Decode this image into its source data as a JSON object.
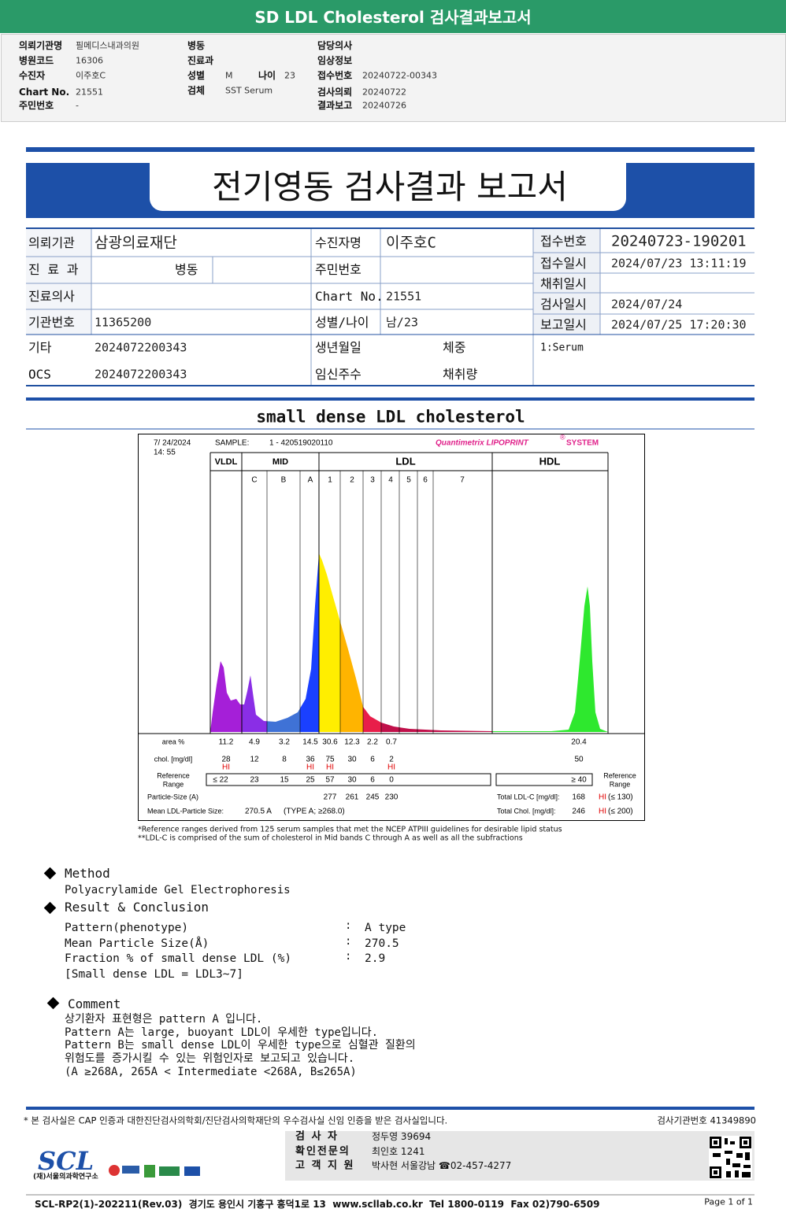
{
  "header": {
    "title": "SD LDL Cholesterol 검사결과보고서"
  },
  "info": [
    [
      [
        "의뢰기관명",
        "필메디스내과의원"
      ],
      [
        "병원코드",
        "16306"
      ],
      [
        "수진자",
        "이주호C"
      ],
      [
        "Chart No.",
        "21551"
      ],
      [
        "주민번호",
        "-"
      ]
    ],
    [
      [
        "병동"
      ],
      [
        "진료과"
      ],
      [
        "성별",
        "M",
        "나이",
        "23"
      ],
      [
        "검체",
        "SST Serum"
      ]
    ],
    [
      [
        "담당의사"
      ],
      [
        "임상정보"
      ],
      [
        "접수번호",
        "20240722-00343"
      ],
      [
        "검사의뢰",
        "20240722"
      ],
      [
        "결과보고",
        "20240726"
      ]
    ]
  ],
  "report": {
    "title": "전기영동 검사결과 보고서",
    "fields": [
      {
        "label": "의뢰기관",
        "value": "삼광의료재단"
      },
      {
        "label": "수진자명",
        "value": "이주호C"
      },
      {
        "label": "접수번호",
        "value": "20240723-190201"
      },
      {
        "label": "진 료 과"
      },
      {
        "label": "병동"
      },
      {
        "label": "주민번호"
      },
      {
        "label": "접수일시",
        "value": "2024/07/23 13:11:19"
      },
      {
        "label": "채취일시"
      },
      {
        "label": "진료의사"
      },
      {
        "label": "Chart No.",
        "value": "21551"
      },
      {
        "label": "검사일시",
        "value": "2024/07/24"
      },
      {
        "label": "기관번호",
        "value": "11365200"
      },
      {
        "label": "성별/나이",
        "value": "남/23"
      },
      {
        "label": "보고일시",
        "value": "2024/07/25 17:20:30"
      },
      {
        "label": "기타",
        "value": "2024072200343"
      },
      {
        "label": "생년월일"
      },
      {
        "label": "체중"
      },
      {
        "label": "OCS",
        "value": "2024072200343"
      },
      {
        "label": "임신주수"
      },
      {
        "label": "채취량"
      }
    ],
    "specimen": "1:Serum",
    "section_title": "small dense LDL cholesterol"
  },
  "lipoprint": {
    "date": "7/ 24/2024",
    "time": "14: 55",
    "sample_label": "SAMPLE:",
    "sample": "1 - 420519020110",
    "brand": "Quantimetrix LIPOPRINT",
    "brand_mark": "®",
    "brand_end": "SYSTEM",
    "groups": [
      "VLDL",
      "MID",
      "LDL",
      "HDL"
    ],
    "bands": [
      "C",
      "B",
      "A",
      "1",
      "2",
      "3",
      "4",
      "5",
      "6",
      "7"
    ],
    "area_label": "area %",
    "area": [
      11.2,
      4.9,
      3.2,
      14.5,
      30.6,
      12.3,
      2.2,
      0.7,
      20.4
    ],
    "chol_label": "chol. [mg/dl]",
    "chol": [
      28,
      12,
      8,
      36,
      75,
      30,
      6,
      2,
      50
    ],
    "flags": [
      "HI",
      null,
      null,
      "HI",
      "HI",
      null,
      null,
      "HI",
      null
    ],
    "ref_label": [
      "Reference",
      "Range"
    ],
    "ref_label_right": [
      "Reference",
      "Range"
    ],
    "ref": [
      "≤ 22",
      23,
      15,
      25,
      57,
      30,
      6,
      0,
      "≥ 40"
    ],
    "size_label": "Particle-Size (A)",
    "size": [
      277,
      261,
      245,
      230
    ],
    "mean_label": "Mean LDL-Particle Size:",
    "mean": "270.5 A",
    "mean_type": "(TYPE A; ≥268.0)",
    "totals": [
      {
        "label": "Total LDL-C [mg/dl]:",
        "value": 168,
        "flag": "HI",
        "limit": "(≤ 130)"
      },
      {
        "label": "Total Chol. [mg/dl]:",
        "value": 246,
        "flag": "HI",
        "limit": "(≤ 200)"
      }
    ],
    "notes": [
      "*Reference ranges derived from 125 serum samples that met the NCEP ATPIII guidelines for desirable lipid status",
      "**LDL-C is comprised of the sum of cholesterol in Mid bands C through A as well as all the subfractions"
    ]
  },
  "method": {
    "heading": "Method",
    "text": "Polyacrylamide Gel Electrophoresis"
  },
  "result": {
    "heading": "Result & Conclusion",
    "rows": [
      [
        "Pattern(phenotype)",
        ":",
        "A type"
      ],
      [
        "Mean Particle Size(Å)",
        ":",
        "270.5"
      ],
      [
        "Fraction % of small dense LDL (%)",
        ":",
        "2.9"
      ]
    ],
    "note": "[Small dense LDL = LDL3~7]"
  },
  "comment": {
    "heading": "Comment",
    "lines": [
      "상기환자 표현형은 pattern A 입니다.",
      "Pattern A는 large, buoyant LDL이 우세한 type입니다.",
      "Pattern B는 small dense LDL이 우세한 type으로 심혈관 질환의",
      "위험도를 증가시킬 수 있는 위험인자로 보고되고 있습니다.",
      "(A ≥268A, 265A < Intermediate <268A, B≤265A)"
    ]
  },
  "footer": {
    "notice": "* 본 검사실은 CAP 인증과 대한진단검사의학회/진단검사의학재단의 우수검사실 신임 인증을 받은 검사실입니다.",
    "agency": "검사기관번호 41349890",
    "staff": [
      [
        "검 사 자",
        "정두영 39694"
      ],
      [
        "확인전문의",
        "최인호 1241"
      ],
      [
        "고 객 지 원",
        "박사현 서울강남 ☎02-457-4277"
      ]
    ],
    "logo": "SCL",
    "logo_sub": "(재)서울의과학연구소",
    "address": "SCL-RP2(1)-202211(Rev.03)  경기도 용인시 기흥구 흥덕1로 13  www.scllab.co.kr  Tel 1800-0119  Fax 02)790-6509",
    "page": "Page 1 of 1"
  }
}
